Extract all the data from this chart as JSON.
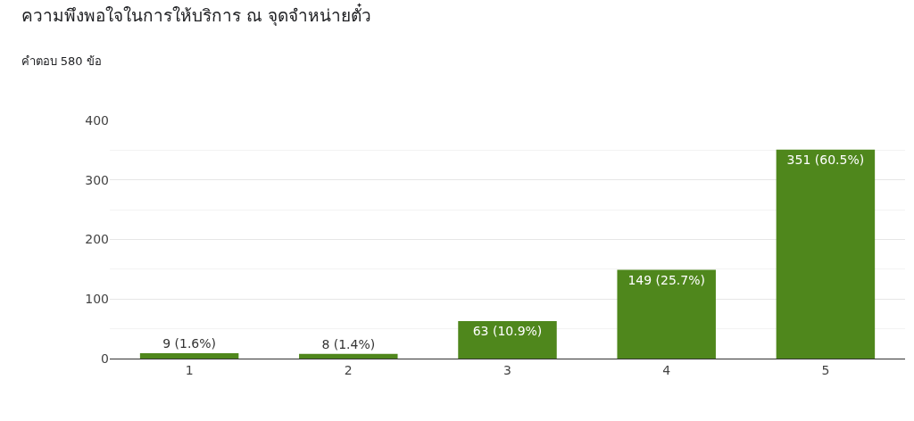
{
  "chart_data": {
    "type": "bar",
    "title": "ความพึงพอใจในการให้บริการ ณ จุดจำหน่ายตั๋ว",
    "subtitle": "คำตอบ 580 ข้อ",
    "categories": [
      "1",
      "2",
      "3",
      "4",
      "5"
    ],
    "values": [
      9,
      8,
      63,
      149,
      351
    ],
    "value_labels": [
      "9 (1.6%)",
      "8 (1.4%)",
      "63 (10.9%)",
      "149 (25.7%)",
      "351 (60.5%)"
    ],
    "color": "#4f871c",
    "ylim": [
      0,
      400
    ],
    "yticks": [
      0,
      100,
      200,
      300,
      400
    ],
    "grid": "y",
    "legend": false
  }
}
